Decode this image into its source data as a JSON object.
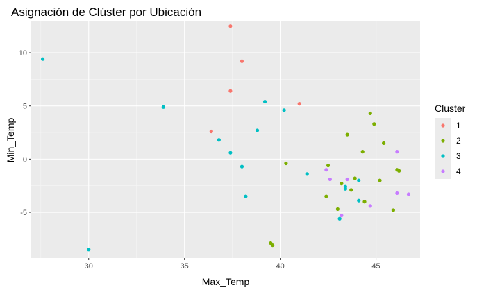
{
  "chart_data": {
    "type": "scatter",
    "title": "Asignación de Clúster por Ubicación",
    "xlabel": "Max_Temp",
    "ylabel": "Min_Temp",
    "xlim": [
      27.0,
      47.3
    ],
    "ylim": [
      -9.3,
      13.0
    ],
    "xticks": [
      30,
      35,
      40,
      45
    ],
    "yticks": [
      -5,
      0,
      5,
      10
    ],
    "grid": true,
    "legend": {
      "title": "Cluster",
      "position": "right"
    },
    "series": [
      {
        "name": "1",
        "color": "#F8766D",
        "points": [
          {
            "x": 37.4,
            "y": 12.5
          },
          {
            "x": 38.0,
            "y": 9.2
          },
          {
            "x": 37.4,
            "y": 6.4
          },
          {
            "x": 41.0,
            "y": 5.2
          },
          {
            "x": 36.4,
            "y": 2.6
          }
        ]
      },
      {
        "name": "2",
        "color": "#7CAE00",
        "points": [
          {
            "x": 44.7,
            "y": 4.3
          },
          {
            "x": 44.9,
            "y": 3.3
          },
          {
            "x": 43.5,
            "y": 2.3
          },
          {
            "x": 45.4,
            "y": 1.5
          },
          {
            "x": 44.3,
            "y": 0.7
          },
          {
            "x": 40.3,
            "y": -0.4
          },
          {
            "x": 42.5,
            "y": -0.6
          },
          {
            "x": 46.1,
            "y": -1.0
          },
          {
            "x": 46.2,
            "y": -1.1
          },
          {
            "x": 43.7,
            "y": -2.9
          },
          {
            "x": 43.9,
            "y": -1.8
          },
          {
            "x": 45.2,
            "y": -2.0
          },
          {
            "x": 43.2,
            "y": -2.3
          },
          {
            "x": 42.4,
            "y": -3.5
          },
          {
            "x": 44.4,
            "y": -4.0
          },
          {
            "x": 43.0,
            "y": -4.7
          },
          {
            "x": 45.9,
            "y": -4.8
          },
          {
            "x": 39.5,
            "y": -7.9
          },
          {
            "x": 39.6,
            "y": -8.1
          }
        ]
      },
      {
        "name": "3",
        "color": "#00BFC4",
        "points": [
          {
            "x": 27.6,
            "y": 9.4
          },
          {
            "x": 33.9,
            "y": 4.9
          },
          {
            "x": 39.2,
            "y": 5.4
          },
          {
            "x": 40.2,
            "y": 4.6
          },
          {
            "x": 38.8,
            "y": 2.7
          },
          {
            "x": 36.8,
            "y": 1.8
          },
          {
            "x": 37.4,
            "y": 0.6
          },
          {
            "x": 38.0,
            "y": -0.7
          },
          {
            "x": 41.4,
            "y": -1.4
          },
          {
            "x": 44.1,
            "y": -2.0
          },
          {
            "x": 43.4,
            "y": -2.6
          },
          {
            "x": 43.4,
            "y": -2.8
          },
          {
            "x": 38.2,
            "y": -3.5
          },
          {
            "x": 44.1,
            "y": -3.9
          },
          {
            "x": 43.1,
            "y": -5.6
          },
          {
            "x": 30.0,
            "y": -8.5
          }
        ]
      },
      {
        "name": "4",
        "color": "#C77CFF",
        "points": [
          {
            "x": 46.1,
            "y": 0.7
          },
          {
            "x": 42.4,
            "y": -1.0
          },
          {
            "x": 42.6,
            "y": -1.9
          },
          {
            "x": 43.5,
            "y": -1.9
          },
          {
            "x": 46.1,
            "y": -3.2
          },
          {
            "x": 46.7,
            "y": -3.3
          },
          {
            "x": 44.7,
            "y": -4.4
          },
          {
            "x": 43.2,
            "y": -5.3
          }
        ]
      }
    ]
  },
  "style": {
    "panel_bg": "#EBEBEB",
    "grid_major": "#FFFFFF",
    "grid_minor": "#F5F5F5",
    "tick_color": "#333333"
  }
}
